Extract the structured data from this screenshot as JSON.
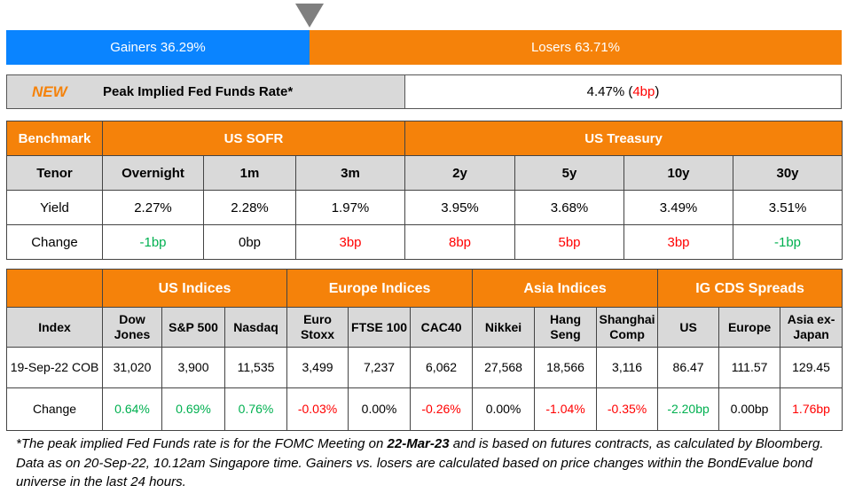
{
  "gainers_losers": {
    "gainers_label": "Gainers 36.29%",
    "losers_label": "Losers 63.71%",
    "gainers_pct": 36.29,
    "losers_pct": 63.71
  },
  "fed": {
    "new_badge": "NEW",
    "title": "Peak Implied Fed Funds Rate*",
    "value": "4.47%",
    "open": " (",
    "change": "4bp",
    "close": ")"
  },
  "rates": {
    "header": [
      "Benchmark",
      "US SOFR",
      "US Treasury"
    ],
    "tenor": [
      "Tenor",
      "Overnight",
      "1m",
      "3m",
      "2y",
      "5y",
      "10y",
      "30y"
    ],
    "yield": [
      "Yield",
      "2.27%",
      "2.28%",
      "1.97%",
      "3.95%",
      "3.68%",
      "3.49%",
      "3.51%"
    ],
    "change": [
      "Change",
      "-1bp",
      "0bp",
      "3bp",
      "8bp",
      "5bp",
      "3bp",
      "-1bp"
    ]
  },
  "indices": {
    "groups": [
      "",
      "US Indices",
      "Europe Indices",
      "Asia Indices",
      "IG CDS Spreads"
    ],
    "columns": [
      "Index",
      "Dow Jones",
      "S&P 500",
      "Nasdaq",
      "Euro Stoxx",
      "FTSE 100",
      "CAC40",
      "Nikkei",
      "Hang Seng",
      "Shanghai Comp",
      "US",
      "Europe",
      "Asia ex-Japan"
    ],
    "values": [
      "19-Sep-22 COB",
      "31,020",
      "3,900",
      "11,535",
      "3,499",
      "7,237",
      "6,062",
      "27,568",
      "18,566",
      "3,116",
      "86.47",
      "111.57",
      "129.45"
    ],
    "change": [
      "Change",
      "0.64%",
      "0.69%",
      "0.76%",
      "-0.03%",
      "0.00%",
      "-0.26%",
      "0.00%",
      "-1.04%",
      "-0.35%",
      "-2.20bp",
      "0.00bp",
      "1.76bp"
    ]
  },
  "footnote": {
    "a": "*The peak implied Fed Funds rate is for the FOMC Meeting on ",
    "b": "22-Mar-23",
    "c": " and is based on futures contracts, as calculated by Bloomberg. Data as on 20-Sep-22, 10.12am Singapore time. Gainers vs. losers are calculated based on price changes within the BondEvalue bond universe in the last 24 hours."
  },
  "colors": {
    "orange": "#f5820a",
    "blue": "#0a84ff",
    "green": "#00b050",
    "red": "#ff0000"
  }
}
